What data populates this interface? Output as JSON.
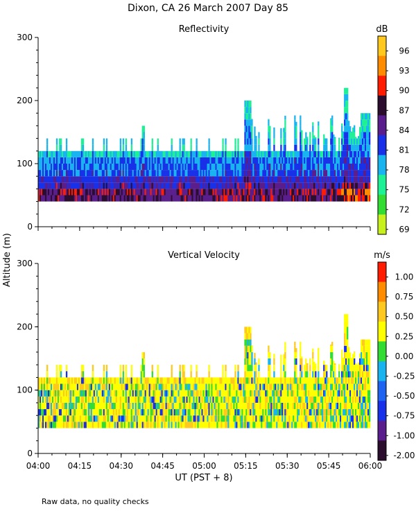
{
  "chart_data": [
    {
      "type": "heatmap",
      "figure_title": "Dixon, CA 26 March 2007  Day  85",
      "title": "Reflectivity",
      "ylabel": "Altitude (m)",
      "xlabel": "UT  (PST + 8)",
      "ylim": [
        0,
        300
      ],
      "yticks": [
        "0",
        "100",
        "200",
        "300"
      ],
      "xticks": [
        "04:00",
        "04:15",
        "04:30",
        "04:45",
        "05:00",
        "05:15",
        "05:30",
        "05:45",
        "06:00"
      ],
      "time_range_min": [
        0,
        120
      ],
      "colorbar_unit": "dB",
      "colorbar_labels": [
        "96",
        "93",
        "90",
        "87",
        "84",
        "81",
        "78",
        "75",
        "72",
        "69"
      ],
      "colorbar_colors": [
        "#ffc81e",
        "#ff8c00",
        "#ff1c00",
        "#2b0d2e",
        "#5a1e8c",
        "#1830e8",
        "#19b4f0",
        "#1ef096",
        "#32dc32",
        "#c8f01e"
      ],
      "echo_base_m": 40,
      "echo_top_typical_m": 120,
      "echo_top_max_m": 220
    },
    {
      "type": "heatmap",
      "title": "Vertical Velocity",
      "ylabel": "Altitude (m)",
      "xlabel": "UT  (PST + 8)",
      "ylim": [
        0,
        300
      ],
      "yticks": [
        "0",
        "100",
        "200",
        "300"
      ],
      "xticks": [
        "04:00",
        "04:15",
        "04:30",
        "04:45",
        "05:00",
        "05:15",
        "05:30",
        "05:45",
        "06:00"
      ],
      "time_range_min": [
        0,
        120
      ],
      "colorbar_unit": "m/s",
      "colorbar_labels": [
        "1.00",
        "0.75",
        "0.50",
        "0.25",
        "0.00",
        "-0.25",
        "-0.50",
        "-0.75",
        "-1.00",
        "-2.00"
      ],
      "colorbar_colors": [
        "#ff1c00",
        "#ff8c00",
        "#ffc81e",
        "#ffff00",
        "#32dc32",
        "#19b4f0",
        "#1e64f0",
        "#1830e8",
        "#5a1e8c",
        "#2b0d2e"
      ],
      "echo_base_m": 40,
      "echo_top_typical_m": 120,
      "echo_top_max_m": 220
    }
  ],
  "footnote": "Raw data, no quality checks"
}
